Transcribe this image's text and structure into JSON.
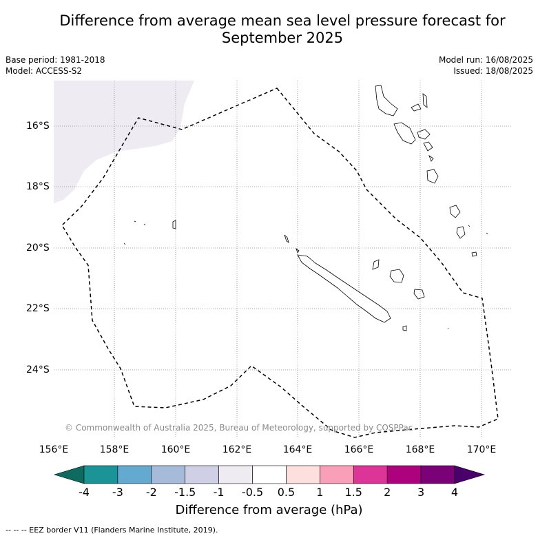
{
  "title_line1": "Difference from average mean sea level pressure forecast for",
  "title_line2": "September 2025",
  "base_period": "Base period: 1981-2018",
  "model": "Model: ACCESS-S2",
  "model_run": "Model run: 16/08/2025",
  "issued": "Issued: 18/08/2025",
  "credit": "© Commonwealth of Australia 2025, Bureau of Meteorology, supported by COSPPac",
  "footnote": "-- -- -- EEZ border V11 (Flanders Marine Institute, 2019).",
  "lon_labels": [
    "156°E",
    "158°E",
    "160°E",
    "162°E",
    "164°E",
    "166°E",
    "168°E",
    "170°E"
  ],
  "lat_labels": [
    "16°S",
    "18°S",
    "20°S",
    "22°S",
    "24°S"
  ],
  "colorbar": {
    "title": "Difference from average (hPa)",
    "ticks": [
      "-4",
      "-3",
      "-2",
      "-1.5",
      "-1",
      "-0.5",
      "0.5",
      "1",
      "1.5",
      "2",
      "3",
      "4"
    ],
    "colors": [
      "#0e6b5f",
      "#1a9497",
      "#63a9d0",
      "#a6bad9",
      "#cfd0e6",
      "#efebf2",
      "#ffffff",
      "#fde0dd",
      "#f9a0b8",
      "#dd3497",
      "#ae017e",
      "#7a0177",
      "#49006a"
    ]
  }
}
